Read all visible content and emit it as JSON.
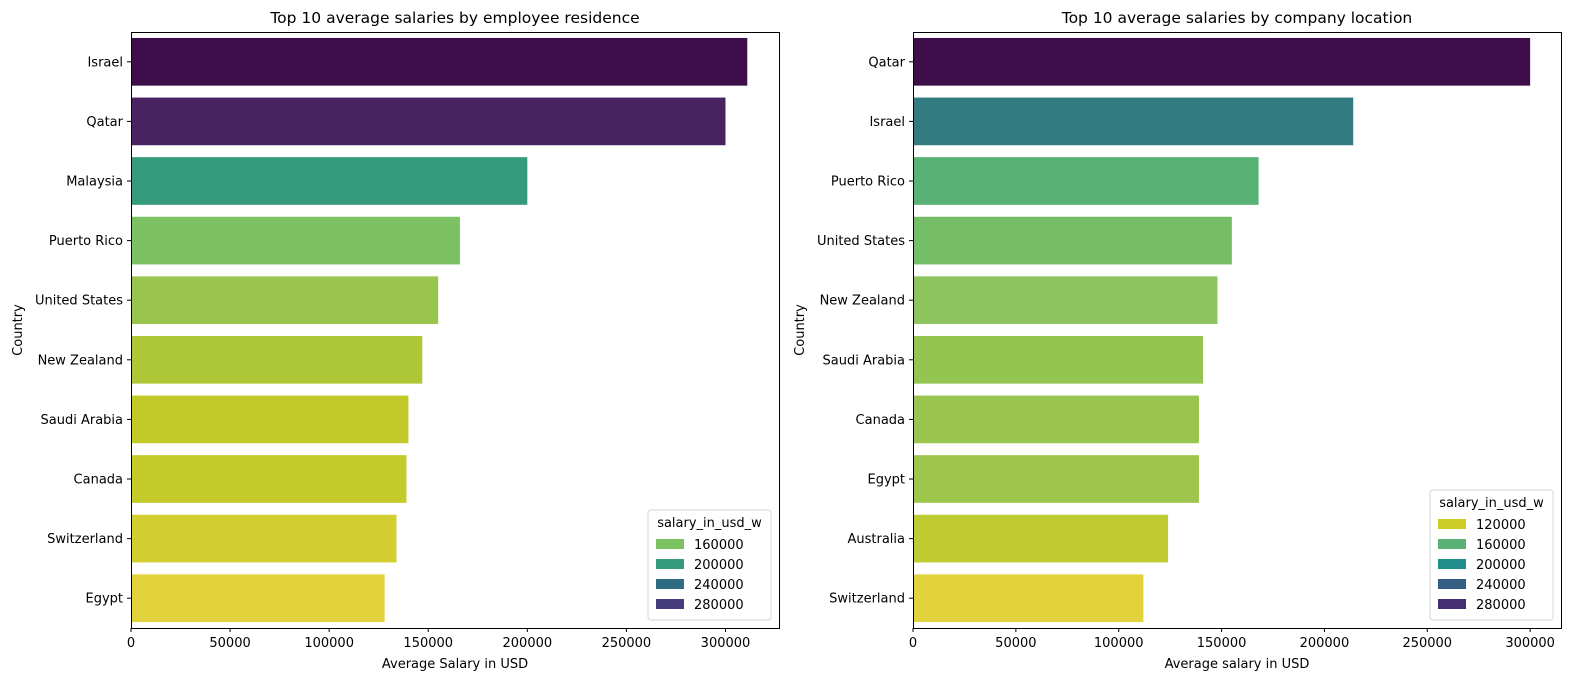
{
  "chart_data": [
    {
      "type": "bar",
      "orientation": "horizontal",
      "title": "Top 10 average salaries by employee residence",
      "xlabel": "Average Salary in USD",
      "ylabel": "Country",
      "xlim": [
        0,
        327000
      ],
      "xticks": [
        0,
        50000,
        100000,
        150000,
        200000,
        250000,
        300000
      ],
      "categories": [
        "Israel",
        "Qatar",
        "Malaysia",
        "Puerto Rico",
        "United States",
        "New Zealand",
        "Saudi Arabia",
        "Canada",
        "Switzerland",
        "Egypt"
      ],
      "values": [
        311000,
        300000,
        200000,
        166000,
        155000,
        147000,
        140000,
        139000,
        134000,
        128000
      ],
      "colors": [
        "#3e0e4a",
        "#482261",
        "#359b7c",
        "#7dc262",
        "#99c54e",
        "#aec736",
        "#c2ca29",
        "#c4ca2a",
        "#d3cf33",
        "#e2d33d"
      ],
      "grid": false,
      "legend": {
        "title": "salary_in_usd_w",
        "position": "lower right",
        "entries": [
          {
            "label": "160000",
            "color": "#7dc262"
          },
          {
            "label": "200000",
            "color": "#359b7c"
          },
          {
            "label": "240000",
            "color": "#2f6b82"
          },
          {
            "label": "280000",
            "color": "#463d7c"
          }
        ]
      }
    },
    {
      "type": "bar",
      "orientation": "horizontal",
      "title": "Top 10 average salaries by company location",
      "xlabel": "Average salary in USD",
      "ylabel": "Country",
      "xlim": [
        0,
        315000
      ],
      "xticks": [
        0,
        50000,
        100000,
        150000,
        200000,
        250000,
        300000
      ],
      "categories": [
        "Qatar",
        "Israel",
        "Puerto Rico",
        "United States",
        "New Zealand",
        "Saudi Arabia",
        "Canada",
        "Egypt",
        "Australia",
        "Switzerland"
      ],
      "values": [
        300000,
        214000,
        168000,
        155000,
        148000,
        141000,
        139000,
        139000,
        124000,
        112000
      ],
      "colors": [
        "#3e0e4a",
        "#327b81",
        "#58b275",
        "#76bd67",
        "#8dc45d",
        "#95c551",
        "#99c54e",
        "#9fc64c",
        "#c0ca31",
        "#e2d33d"
      ],
      "grid": false,
      "legend": {
        "title": "salary_in_usd_w",
        "position": "lower right",
        "entries": [
          {
            "label": "120000",
            "color": "#cdcc27"
          },
          {
            "label": "160000",
            "color": "#58b275"
          },
          {
            "label": "200000",
            "color": "#218d8a"
          },
          {
            "label": "240000",
            "color": "#345e84"
          },
          {
            "label": "280000",
            "color": "#452f72"
          }
        ]
      }
    }
  ]
}
